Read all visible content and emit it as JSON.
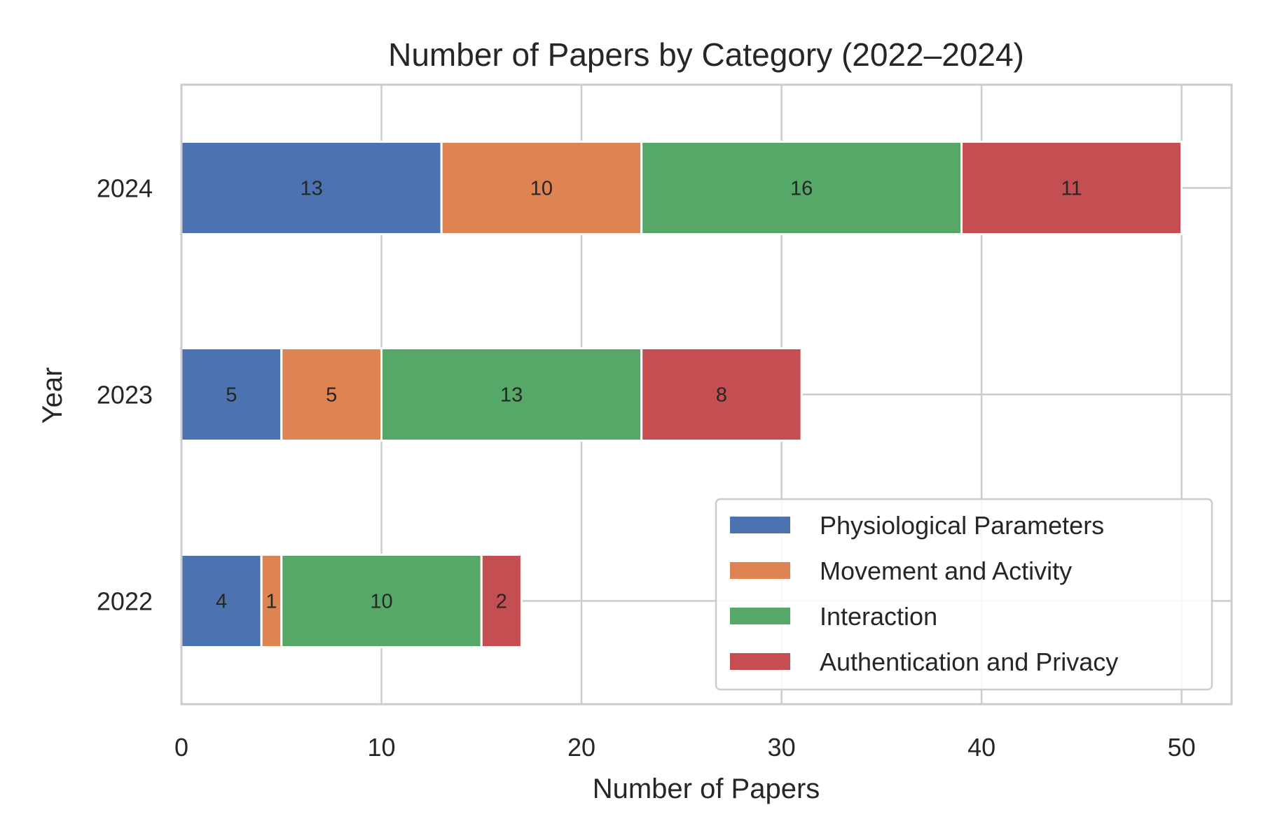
{
  "chart_data": {
    "type": "bar",
    "orientation": "horizontal",
    "stacked": true,
    "title": "Number of Papers by Category (2022–2024)",
    "xlabel": "Number of Papers",
    "ylabel": "Year",
    "categories": [
      "2022",
      "2023",
      "2024"
    ],
    "series": [
      {
        "name": "Physiological Parameters",
        "color": "#4c72b0",
        "values": [
          4,
          5,
          13
        ]
      },
      {
        "name": "Movement and Activity",
        "color": "#dd8452",
        "values": [
          1,
          5,
          10
        ]
      },
      {
        "name": "Interaction",
        "color": "#55a868",
        "values": [
          10,
          13,
          16
        ]
      },
      {
        "name": "Authentication and Privacy",
        "color": "#c44e52",
        "values": [
          2,
          8,
          11
        ]
      }
    ],
    "xlim": [
      0,
      52.5
    ],
    "xticks": [
      0,
      10,
      20,
      30,
      40,
      50
    ],
    "grid": true,
    "legend_position": "lower-right",
    "colors": {
      "grid": "#cccccc",
      "spine": "#cccccc",
      "text": "#262626",
      "background": "#ffffff"
    }
  }
}
